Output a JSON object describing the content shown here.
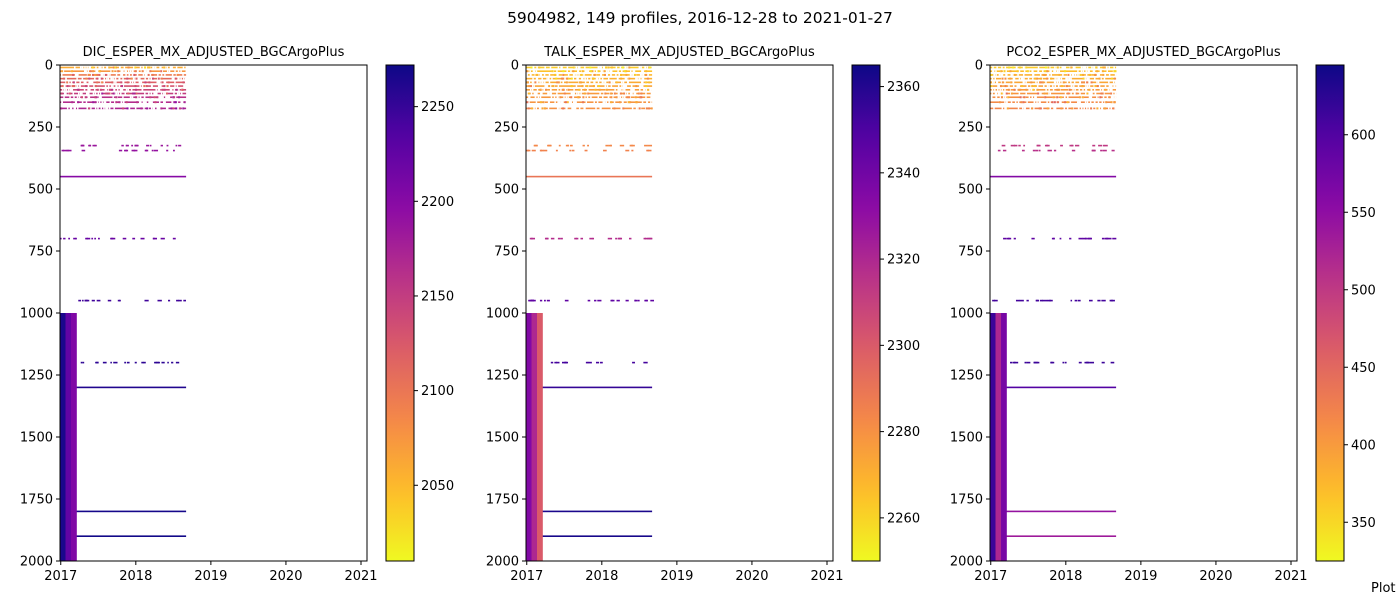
{
  "title": "5904982, 149 profiles, 2016-12-28 to 2021-01-27",
  "footer_text": "Plot",
  "colormap": [
    "#0d0887",
    "#5402a3",
    "#8b0aa5",
    "#b93289",
    "#db5c68",
    "#f48849",
    "#febc2a",
    "#f0f921"
  ],
  "chart_data": [
    {
      "type": "heatmap",
      "title": "DIC_ESPER_MX_ADJUSTED_BGCArgoPlus",
      "xlabel": "",
      "ylabel": "",
      "xlim": [
        2016.99,
        2021.08
      ],
      "ylim": [
        2000,
        0
      ],
      "y_inverted": true,
      "x_ticks": [
        "2017",
        "2018",
        "2019",
        "2020",
        "2021"
      ],
      "y_ticks": [
        "0",
        "250",
        "500",
        "750",
        "1000",
        "1250",
        "1500",
        "1750",
        "2000"
      ],
      "colorbar": {
        "min": 2010,
        "max": 2272,
        "ticks": [
          "2050",
          "2100",
          "2150",
          "2200",
          "2250"
        ]
      },
      "data_time_range": [
        2016.99,
        2018.67
      ],
      "levels": [
        {
          "depth": 10,
          "value": 2060
        },
        {
          "depth": 25,
          "value": 2075
        },
        {
          "depth": 40,
          "value": 2095
        },
        {
          "depth": 55,
          "value": 2110
        },
        {
          "depth": 70,
          "value": 2120
        },
        {
          "depth": 85,
          "value": 2130
        },
        {
          "depth": 100,
          "value": 2140
        },
        {
          "depth": 115,
          "value": 2150
        },
        {
          "depth": 130,
          "value": 2160
        },
        {
          "depth": 150,
          "value": 2165
        },
        {
          "depth": 175,
          "value": 2170
        },
        {
          "depth": 325,
          "value": 2185
        },
        {
          "depth": 345,
          "value": 2190
        },
        {
          "depth": 450,
          "value": 2200
        },
        {
          "depth": 700,
          "value": 2220
        },
        {
          "depth": 950,
          "value": 2245
        },
        {
          "depth": 1200,
          "value": 2255
        },
        {
          "depth": 1300,
          "value": 2262
        },
        {
          "depth": 1800,
          "value": 2268
        },
        {
          "depth": 1900,
          "value": 2270
        }
      ],
      "deep_block": {
        "t0": 2016.99,
        "t1": 2017.21,
        "d0": 1000,
        "d1": 2000,
        "values": [
          2265,
          2225,
          2205
        ]
      }
    },
    {
      "type": "heatmap",
      "title": "TALK_ESPER_MX_ADJUSTED_BGCArgoPlus",
      "xlabel": "",
      "ylabel": "",
      "xlim": [
        2016.99,
        2021.08
      ],
      "ylim": [
        2000,
        0
      ],
      "y_inverted": true,
      "x_ticks": [
        "2017",
        "2018",
        "2019",
        "2020",
        "2021"
      ],
      "y_ticks": [
        "0",
        "250",
        "500",
        "750",
        "1000",
        "1250",
        "1500",
        "1750",
        "2000"
      ],
      "colorbar": {
        "min": 2250,
        "max": 2365,
        "ticks": [
          "2260",
          "2280",
          "2300",
          "2320",
          "2340",
          "2360"
        ]
      },
      "data_time_range": [
        2016.99,
        2018.67
      ],
      "levels": [
        {
          "depth": 10,
          "value": 2262
        },
        {
          "depth": 25,
          "value": 2265
        },
        {
          "depth": 40,
          "value": 2268
        },
        {
          "depth": 55,
          "value": 2270
        },
        {
          "depth": 70,
          "value": 2272
        },
        {
          "depth": 85,
          "value": 2274
        },
        {
          "depth": 100,
          "value": 2276
        },
        {
          "depth": 115,
          "value": 2277
        },
        {
          "depth": 130,
          "value": 2278
        },
        {
          "depth": 150,
          "value": 2279
        },
        {
          "depth": 175,
          "value": 2280
        },
        {
          "depth": 325,
          "value": 2283
        },
        {
          "depth": 345,
          "value": 2285
        },
        {
          "depth": 450,
          "value": 2290
        },
        {
          "depth": 700,
          "value": 2318
        },
        {
          "depth": 950,
          "value": 2345
        },
        {
          "depth": 1200,
          "value": 2352
        },
        {
          "depth": 1300,
          "value": 2356
        },
        {
          "depth": 1800,
          "value": 2362
        },
        {
          "depth": 1900,
          "value": 2363
        }
      ],
      "deep_block": {
        "t0": 2016.99,
        "t1": 2017.21,
        "d0": 1000,
        "d1": 2000,
        "values": [
          2335,
          2320,
          2300
        ]
      }
    },
    {
      "type": "heatmap",
      "title": "PCO2_ESPER_MX_ADJUSTED_BGCArgoPlus",
      "xlabel": "",
      "ylabel": "",
      "xlim": [
        2016.99,
        2021.08
      ],
      "ylim": [
        2000,
        0
      ],
      "y_inverted": true,
      "x_ticks": [
        "2017",
        "2018",
        "2019",
        "2020",
        "2021"
      ],
      "y_ticks": [
        "0",
        "250",
        "500",
        "750",
        "1000",
        "1250",
        "1500",
        "1750",
        "2000"
      ],
      "colorbar": {
        "min": 325,
        "max": 645,
        "ticks": [
          "350",
          "400",
          "450",
          "500",
          "550",
          "600"
        ]
      },
      "data_time_range": [
        2016.99,
        2018.67
      ],
      "levels": [
        {
          "depth": 10,
          "value": 360
        },
        {
          "depth": 25,
          "value": 370
        },
        {
          "depth": 40,
          "value": 380
        },
        {
          "depth": 55,
          "value": 385
        },
        {
          "depth": 70,
          "value": 390
        },
        {
          "depth": 85,
          "value": 395
        },
        {
          "depth": 100,
          "value": 400
        },
        {
          "depth": 115,
          "value": 405
        },
        {
          "depth": 130,
          "value": 410
        },
        {
          "depth": 150,
          "value": 415
        },
        {
          "depth": 175,
          "value": 420
        },
        {
          "depth": 325,
          "value": 500
        },
        {
          "depth": 345,
          "value": 510
        },
        {
          "depth": 450,
          "value": 560
        },
        {
          "depth": 700,
          "value": 590
        },
        {
          "depth": 950,
          "value": 610
        },
        {
          "depth": 1200,
          "value": 615
        },
        {
          "depth": 1300,
          "value": 600
        },
        {
          "depth": 1800,
          "value": 545
        },
        {
          "depth": 1900,
          "value": 535
        }
      ],
      "deep_block": {
        "t0": 2016.99,
        "t1": 2017.21,
        "d0": 1000,
        "d1": 2000,
        "values": [
          615,
          520,
          570
        ]
      }
    }
  ]
}
